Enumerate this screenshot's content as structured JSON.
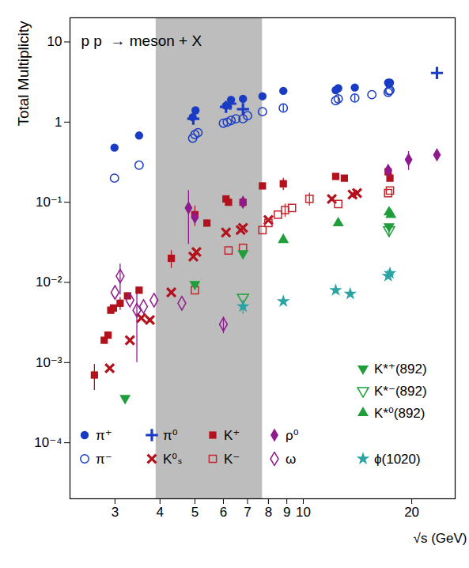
{
  "chart_data": {
    "type": "scatter",
    "annotation": "p p  → meson + X",
    "x_label": "√s (GeV)",
    "y_label": "Total Multiplicity",
    "log": true,
    "xlim": [
      2.25,
      26.4
    ],
    "ylim": [
      2e-05,
      20
    ],
    "xticks": [
      3,
      4,
      5,
      6,
      7,
      8,
      9,
      10,
      20
    ],
    "yticks": [
      {
        "value": 0.0001,
        "label": "10⁻⁴"
      },
      {
        "value": 0.001,
        "label": "10⁻³"
      },
      {
        "value": 0.01,
        "label": "10⁻²"
      },
      {
        "value": 0.1,
        "label": "10⁻¹"
      },
      1,
      10
    ],
    "shaded_range": [
      3.9,
      7.7
    ],
    "legend": "bottom",
    "series": [
      {
        "name": "π⁺",
        "color": "#1a3cc4",
        "marker": "circle",
        "x": [
          2.99,
          3.5,
          4.93,
          5.02,
          6.1,
          6.3,
          6.8,
          7.7,
          8.8,
          12.3,
          12.5,
          13.9,
          17.2,
          17.3,
          17.4
        ],
        "values": [
          0.48,
          0.68,
          1.15,
          1.4,
          1.6,
          1.9,
          1.95,
          2.1,
          2.45,
          2.5,
          2.65,
          2.7,
          3.1,
          3.0,
          3.1
        ]
      },
      {
        "name": "π⁰",
        "color": "#1a3cc4",
        "marker": "plus",
        "x": [
          4.95,
          6.1,
          6.27,
          6.8,
          23.5
        ],
        "values": [
          1.1,
          1.55,
          1.7,
          1.45,
          4.1
        ]
      },
      {
        "name": "K⁺",
        "color": "#b3121c",
        "marker": "square",
        "x": [
          2.63,
          2.8,
          2.87,
          2.92,
          2.97,
          3.1,
          3.25,
          3.5,
          4.3,
          5.0,
          5.4,
          6.1,
          6.2,
          6.8,
          7.7,
          8.8,
          12.3,
          13.0,
          17.2,
          17.4
        ],
        "values": [
          0.0007,
          0.0019,
          0.0022,
          0.0045,
          0.0048,
          0.0055,
          0.0068,
          0.008,
          0.02,
          0.07,
          0.055,
          0.11,
          0.1,
          0.1,
          0.16,
          0.17,
          0.21,
          0.2,
          0.24,
          0.2
        ],
        "errors": [
          0.00025,
          null,
          null,
          null,
          null,
          0.001,
          null,
          null,
          0.005,
          0.02,
          null,
          null,
          null,
          null,
          null,
          0.03,
          null,
          null,
          null,
          null
        ]
      },
      {
        "name": "ρ⁰",
        "color": "#8e1a8e",
        "marker": "diamond",
        "x": [
          4.8,
          5.0,
          6.8,
          17.2,
          19.6,
          23.5
        ],
        "values": [
          0.085,
          0.065,
          0.1,
          0.25,
          0.34,
          0.39
        ],
        "errors": [
          0.055,
          null,
          null,
          0.03,
          0.09,
          0.04
        ]
      },
      {
        "name": "π⁻",
        "color": "#1a3cc4",
        "marker": "circle-open",
        "x": [
          2.99,
          3.5,
          4.93,
          5.0,
          5.1,
          6.0,
          6.15,
          6.3,
          6.5,
          6.8,
          7.0,
          7.7,
          8.8,
          12.3,
          12.5,
          13.9,
          15.5,
          17.2,
          17.3,
          17.4
        ],
        "values": [
          0.2,
          0.29,
          0.63,
          0.7,
          0.74,
          0.97,
          1.0,
          1.05,
          1.1,
          1.1,
          1.2,
          1.35,
          1.5,
          1.85,
          1.95,
          2.0,
          2.2,
          2.35,
          2.45,
          2.5
        ],
        "errors": [
          null,
          null,
          null,
          null,
          null,
          null,
          null,
          null,
          null,
          null,
          null,
          null,
          0.15,
          null,
          0.2,
          0.2,
          null,
          null,
          null,
          null
        ]
      },
      {
        "name": "K⁰ₛ",
        "color": "#b3121c",
        "marker": "times",
        "x": [
          2.9,
          3.3,
          3.55,
          3.75,
          4.3,
          4.95,
          5.05,
          6.1,
          6.7,
          6.8,
          8.0,
          12.0,
          13.7,
          14.1
        ],
        "values": [
          0.00085,
          0.0019,
          0.0036,
          0.0034,
          0.0075,
          0.021,
          0.024,
          0.042,
          0.045,
          0.048,
          0.06,
          0.11,
          0.125,
          0.13
        ]
      },
      {
        "name": "K⁻",
        "color": "#c0282d",
        "marker": "square-open",
        "x": [
          5.0,
          6.2,
          6.8,
          7.7,
          8.0,
          8.5,
          8.9,
          9.3,
          10.4,
          12.5,
          17.2,
          17.4
        ],
        "values": [
          0.008,
          0.025,
          0.027,
          0.045,
          0.055,
          0.07,
          0.08,
          0.085,
          0.11,
          0.095,
          0.13,
          0.14
        ],
        "errors": [
          null,
          null,
          null,
          null,
          null,
          null,
          0.015,
          null,
          0.02,
          null,
          null,
          null
        ]
      },
      {
        "name": "ω",
        "color": "#8e1a8e",
        "marker": "diamond-open",
        "x": [
          3.0,
          3.1,
          3.3,
          3.45,
          3.6,
          3.85,
          4.6,
          6.0
        ],
        "values": [
          0.0075,
          0.012,
          0.006,
          0.0045,
          0.005,
          0.006,
          0.0055,
          0.003
        ],
        "errors": [
          null,
          0.005,
          null,
          0.0035,
          null,
          null,
          null,
          0.0007
        ]
      },
      {
        "name": "K*⁺(892)",
        "color": "#1f9e3b",
        "marker": "triangle-down",
        "x": [
          3.2,
          5.0,
          6.8,
          17.3
        ],
        "values": [
          0.00036,
          0.0095,
          0.023,
          0.05
        ]
      },
      {
        "name": "K*⁻(892)",
        "color": "#1f9e3b",
        "marker": "triangle-down-open",
        "x": [
          6.8,
          17.3
        ],
        "values": [
          0.0065,
          0.045
        ],
        "errors": [
          null,
          0.008
        ]
      },
      {
        "name": "K*⁰(892)",
        "color": "#1f9e3b",
        "marker": "triangle",
        "x": [
          8.8,
          12.5,
          17.3,
          17.5
        ],
        "values": [
          0.034,
          0.055,
          0.075,
          0.07
        ]
      },
      {
        "name": "ϕ(1020)",
        "color": "#2aa3a3",
        "marker": "star",
        "x": [
          6.8,
          8.8,
          12.3,
          13.5,
          17.2,
          17.4
        ],
        "values": [
          0.005,
          0.0058,
          0.008,
          0.0072,
          0.012,
          0.013
        ],
        "errors": [
          0.001,
          null,
          null,
          null,
          null,
          null
        ]
      }
    ]
  }
}
